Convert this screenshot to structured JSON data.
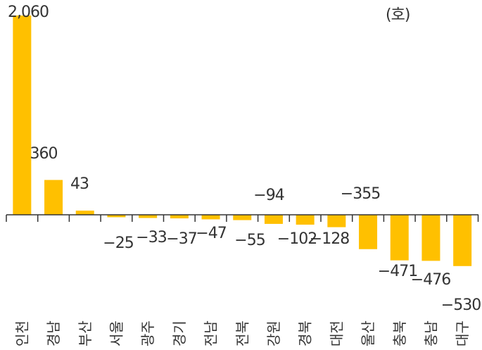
{
  "chart_data": {
    "type": "bar",
    "unit": "(호)",
    "categories": [
      "인천",
      "경남",
      "부산",
      "서울",
      "광주",
      "경기",
      "전남",
      "전북",
      "강원",
      "경북",
      "대전",
      "울산",
      "충북",
      "충남",
      "대구"
    ],
    "values": [
      2060,
      360,
      43,
      -25,
      -33,
      -37,
      -47,
      -55,
      -94,
      -102,
      -128,
      -355,
      -471,
      -476,
      -530
    ],
    "value_labels": [
      "2,060",
      "360",
      "43",
      "−25",
      "−33",
      "−37",
      "−47",
      "−55",
      "−94",
      "−102",
      "−128",
      "−355",
      "−471",
      "−476",
      "−530"
    ],
    "bar_color": "#FFC000",
    "ylim": [
      -530,
      2060
    ],
    "grid": false
  }
}
